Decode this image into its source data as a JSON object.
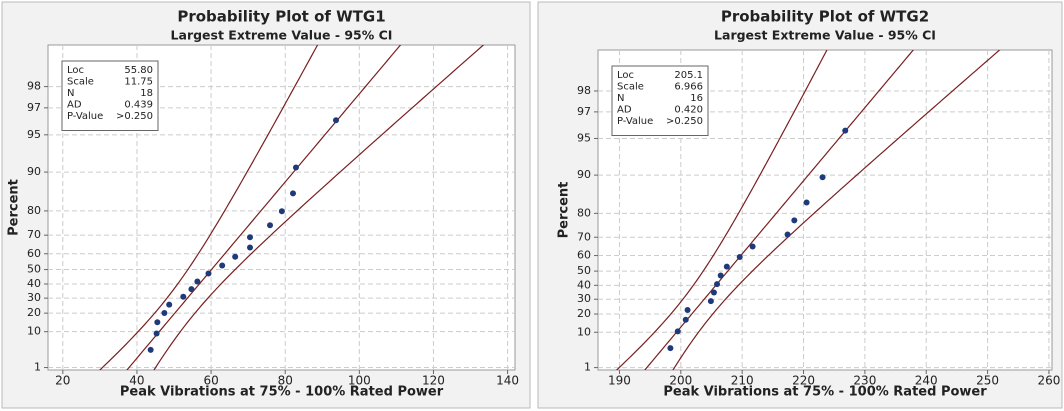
{
  "chart_data": [
    {
      "type": "probability",
      "title": "Probability Plot of WTG1",
      "subtitle": "Largest Extreme Value - 95% CI",
      "xlabel": "Peak Vibrations at 75% - 100% Rated Power",
      "ylabel": "Percent",
      "x": [
        43.7,
        45.3,
        45.5,
        47.4,
        48.7,
        52.5,
        54.7,
        56.3,
        59.3,
        63.0,
        66.5,
        70.5,
        70.5,
        75.9,
        79.1,
        82.1,
        82.9,
        93.7
      ],
      "values": [
        3.8,
        9.2,
        14.7,
        20.1,
        25.5,
        31.0,
        36.4,
        41.8,
        47.3,
        52.7,
        58.2,
        63.6,
        69.0,
        74.5,
        79.9,
        85.3,
        90.8,
        96.2
      ],
      "stats": [
        {
          "name": "Loc",
          "value": 55.8,
          "label": "55.80"
        },
        {
          "name": "Scale",
          "value": 11.75,
          "label": "11.75"
        },
        {
          "name": "N",
          "value": 18
        },
        {
          "name": "AD",
          "value": 0.439,
          "label": "0.439"
        },
        {
          "name": "P-Value",
          "value": 0.25,
          "label": ">0.250"
        }
      ],
      "xlim": [
        16,
        142
      ],
      "xticks": [
        20,
        40,
        60,
        80,
        100,
        120,
        140
      ],
      "ylim": [
        0.8,
        99.1
      ],
      "yticks": [
        1,
        10,
        20,
        30,
        40,
        50,
        60,
        70,
        80,
        90,
        95,
        97,
        98
      ],
      "grid": true,
      "color": "#1f3a7a",
      "line_color": "#7a1f1f"
    },
    {
      "type": "probability",
      "title": "Probability Plot of WTG2",
      "subtitle": "Largest Extreme Value - 95% CI",
      "xlabel": "Peak Vibrations at 75% - 100% Rated Power",
      "ylabel": "Percent",
      "x": [
        198.3,
        199.5,
        200.8,
        201.1,
        204.9,
        205.4,
        205.9,
        206.5,
        207.5,
        209.6,
        211.7,
        217.4,
        218.5,
        220.5,
        223.1,
        226.8
      ],
      "values": [
        4.3,
        10.4,
        16.5,
        22.6,
        28.7,
        34.8,
        40.9,
        47.0,
        53.0,
        59.1,
        65.2,
        71.3,
        77.4,
        83.5,
        89.6,
        95.7
      ],
      "stats": [
        {
          "name": "Loc",
          "value": 205.1,
          "label": "205.1"
        },
        {
          "name": "Scale",
          "value": 6.966,
          "label": "6.966"
        },
        {
          "name": "N",
          "value": 16
        },
        {
          "name": "AD",
          "value": 0.42,
          "label": "0.420"
        },
        {
          "name": "P-Value",
          "value": 0.25,
          "label": ">0.250"
        }
      ],
      "xlim": [
        186.5,
        260.5
      ],
      "xticks": [
        190,
        200,
        210,
        220,
        230,
        240,
        250,
        260
      ],
      "ylim": [
        0.8,
        99.1
      ],
      "yticks": [
        1,
        10,
        20,
        30,
        40,
        50,
        60,
        70,
        80,
        90,
        95,
        97,
        98
      ],
      "grid": true,
      "color": "#1f3a7a",
      "line_color": "#7a1f1f"
    }
  ]
}
